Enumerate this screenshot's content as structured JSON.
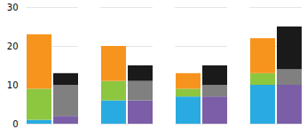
{
  "chart_data": {
    "type": "bar",
    "stacked": true,
    "categories": [
      null,
      null,
      null,
      null
    ],
    "bars": [
      {
        "series": [
          {
            "color": "#29abe2",
            "values": [
              1,
              6,
              7,
              10
            ]
          },
          {
            "color": "#8dc63f",
            "values": [
              8,
              5,
              2,
              3
            ]
          },
          {
            "color": "#f7941d",
            "values": [
              14,
              9,
              4,
              9
            ]
          }
        ]
      },
      {
        "series": [
          {
            "color": "#7b5ea7",
            "values": [
              2,
              6,
              7,
              10
            ]
          },
          {
            "color": "#808080",
            "values": [
              8,
              5,
              3,
              4
            ]
          },
          {
            "color": "#1a1a1a",
            "values": [
              3,
              4,
              5,
              11
            ]
          }
        ]
      }
    ],
    "ylim": [
      0,
      30
    ],
    "yticks": [
      0,
      10,
      20,
      30
    ],
    "grid": true,
    "tick_labels": "y"
  }
}
